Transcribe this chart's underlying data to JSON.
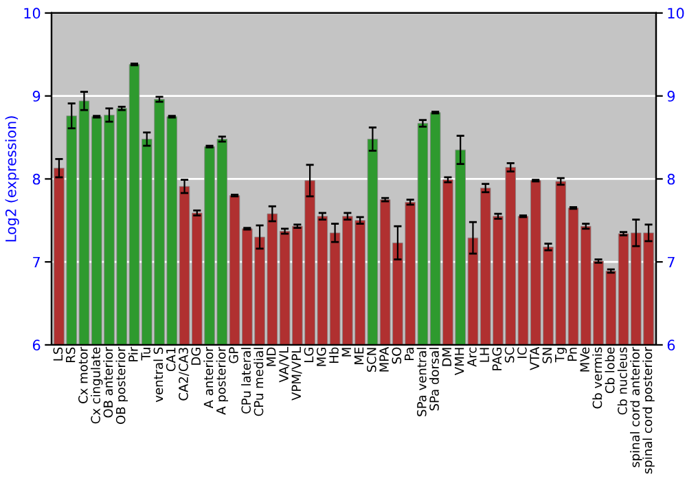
{
  "chart_data": {
    "type": "bar",
    "ylabel": "Log2 (expression)",
    "categories": [
      "LS",
      "RS",
      "Cx motor",
      "Cx cingulate",
      "OB anterior",
      "OB posterior",
      "Pir",
      "Tu",
      "ventral S",
      "CA1",
      "CA2/CA3",
      "DG",
      "A anterior",
      "A posterior",
      "GP",
      "CPu lateral",
      "CPu medial",
      "MD",
      "VA/VL",
      "VPM/VPL",
      "LG",
      "MG",
      "Hb",
      "M",
      "ME",
      "SCN",
      "MPA",
      "SO",
      "Pa",
      "SPa ventral",
      "SPa dorsal",
      "DM",
      "VMH",
      "Arc",
      "LH",
      "PAG",
      "SC",
      "IC",
      "VTA",
      "SN",
      "Tg",
      "Pn",
      "MVe",
      "Cb vermis",
      "Cb lobe",
      "Cb nucleus",
      "spinal cord anterior",
      "spinal cord posterior"
    ],
    "values": [
      8.13,
      8.76,
      8.94,
      8.75,
      8.77,
      8.85,
      9.38,
      8.48,
      8.96,
      8.75,
      7.91,
      7.59,
      8.39,
      8.48,
      7.8,
      7.4,
      7.3,
      7.58,
      7.37,
      7.43,
      7.98,
      7.55,
      7.35,
      7.55,
      7.5,
      8.48,
      7.75,
      7.23,
      7.72,
      8.67,
      8.8,
      7.99,
      8.35,
      7.29,
      7.89,
      7.55,
      8.14,
      7.55,
      7.98,
      7.18,
      7.97,
      7.65,
      7.43,
      7.01,
      6.89,
      7.34,
      7.35,
      7.35
    ],
    "errors": [
      0.11,
      0.15,
      0.11,
      0.01,
      0.08,
      0.02,
      0.01,
      0.08,
      0.03,
      0.01,
      0.08,
      0.03,
      0.01,
      0.03,
      0.01,
      0.01,
      0.14,
      0.09,
      0.03,
      0.02,
      0.19,
      0.04,
      0.11,
      0.04,
      0.04,
      0.14,
      0.02,
      0.2,
      0.03,
      0.04,
      0.01,
      0.03,
      0.17,
      0.19,
      0.05,
      0.03,
      0.05,
      0.01,
      0.01,
      0.04,
      0.04,
      0.01,
      0.03,
      0.02,
      0.02,
      0.02,
      0.16,
      0.1
    ],
    "colors": [
      "#b03030",
      "#2e9a2e",
      "#2e9a2e",
      "#2e9a2e",
      "#2e9a2e",
      "#2e9a2e",
      "#2e9a2e",
      "#2e9a2e",
      "#2e9a2e",
      "#2e9a2e",
      "#b03030",
      "#b03030",
      "#2e9a2e",
      "#2e9a2e",
      "#b03030",
      "#b03030",
      "#b03030",
      "#b03030",
      "#b03030",
      "#b03030",
      "#b03030",
      "#b03030",
      "#b03030",
      "#b03030",
      "#b03030",
      "#2e9a2e",
      "#b03030",
      "#b03030",
      "#b03030",
      "#2e9a2e",
      "#2e9a2e",
      "#b03030",
      "#2e9a2e",
      "#b03030",
      "#b03030",
      "#b03030",
      "#b03030",
      "#b03030",
      "#b03030",
      "#b03030",
      "#b03030",
      "#b03030",
      "#b03030",
      "#b03030",
      "#b03030",
      "#b03030",
      "#b03030",
      "#b03030"
    ],
    "ylim": [
      6,
      10
    ],
    "yticks": [
      6,
      7,
      8,
      9,
      10
    ],
    "y2lim": [
      6,
      10
    ],
    "y2ticks": [
      6,
      7,
      8,
      9,
      10
    ],
    "grid": "y"
  }
}
